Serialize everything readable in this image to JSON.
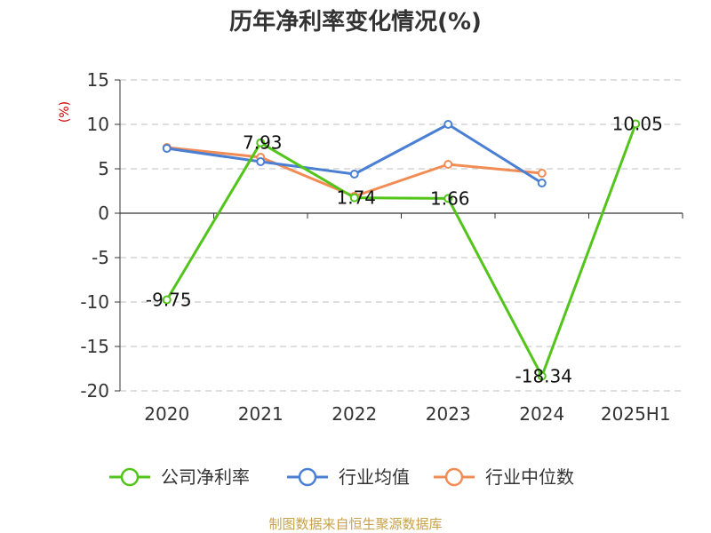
{
  "chart_data": {
    "type": "line",
    "title": "历年净利率变化情况(%)",
    "ylabel": "(%)",
    "xlabel": "",
    "categories": [
      "2020",
      "2021",
      "2022",
      "2023",
      "2024",
      "2025H1"
    ],
    "ylim": [
      -20,
      15
    ],
    "yticks": [
      15,
      10,
      5,
      0,
      -5,
      -10,
      -15,
      -20
    ],
    "grid": true,
    "legend_position": "bottom",
    "series": [
      {
        "name": "公司净利率",
        "color": "#52c41a",
        "values": [
          -9.75,
          7.93,
          1.74,
          1.66,
          -18.34,
          10.05
        ],
        "labels": [
          "-9.75",
          "7.93",
          "1.74",
          "1.66",
          "-18.34",
          "10.05"
        ]
      },
      {
        "name": "行业均值",
        "color": "#4a7fd4",
        "values": [
          7.3,
          5.8,
          4.4,
          10.0,
          3.4,
          null
        ]
      },
      {
        "name": "行业中位数",
        "color": "#f28c55",
        "values": [
          7.4,
          6.3,
          1.9,
          5.5,
          4.5,
          null
        ]
      }
    ]
  },
  "source_text": "制图数据来自恒生聚源数据库",
  "colors": {
    "title": "#333333",
    "ylabel": "#cc0000",
    "source": "#c8a24a",
    "grid": "#cccccc",
    "axis": "#333333"
  }
}
